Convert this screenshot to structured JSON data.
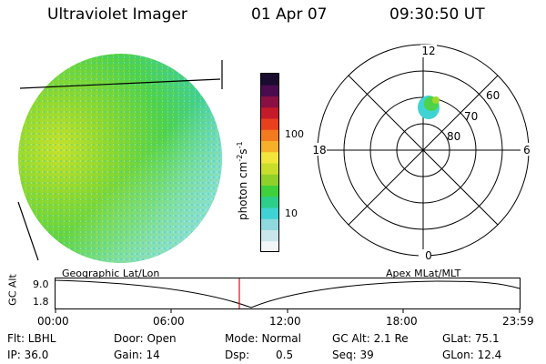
{
  "header": {
    "title": "Ultraviolet Imager",
    "date": "01 Apr 07",
    "time": "09:30:50 UT"
  },
  "colorbar": {
    "unit_label": "photon cm",
    "unit_sup1": "-2",
    "unit_mid": "s",
    "unit_sup2": "-1",
    "tick_100": "100",
    "tick_10": "10",
    "colors": [
      "#f2f6f8",
      "#c9e6ea",
      "#8fd8de",
      "#3fd3d3",
      "#2bcf8a",
      "#3fd13b",
      "#8fd12a",
      "#c9de2a",
      "#f2e63a",
      "#f7b02a",
      "#f47a1f",
      "#e8401d",
      "#c41a2a",
      "#8a1043",
      "#4a0c4f",
      "#1a0b30"
    ]
  },
  "polar": {
    "label_top": "12",
    "label_bottom": "0",
    "label_left": "18",
    "label_right": "6",
    "ring_60": "60",
    "ring_70": "70",
    "ring_80": "80"
  },
  "timeline": {
    "y_axis_label": "GC Alt",
    "y_max": "9.0",
    "y_min": "1.8",
    "left_label": "Geographic Lat/Lon",
    "right_label": "Apex MLat/MLT",
    "x_ticks": [
      "00:00",
      "06:00",
      "12:00",
      "18:00",
      "23:59"
    ]
  },
  "status": {
    "filter": "Flt: LBHL",
    "ip": "IP: 36.0",
    "door": "Door: Open",
    "gain": "Gain: 14",
    "mode": "Mode: Normal",
    "dsp_label": "Dsp:",
    "dsp_value": "0.5",
    "gc_alt": "GC Alt: 2.1 Re",
    "seq": "Seq: 39",
    "glat": "GLat: 75.1",
    "glon": "GLon: 12.4"
  }
}
